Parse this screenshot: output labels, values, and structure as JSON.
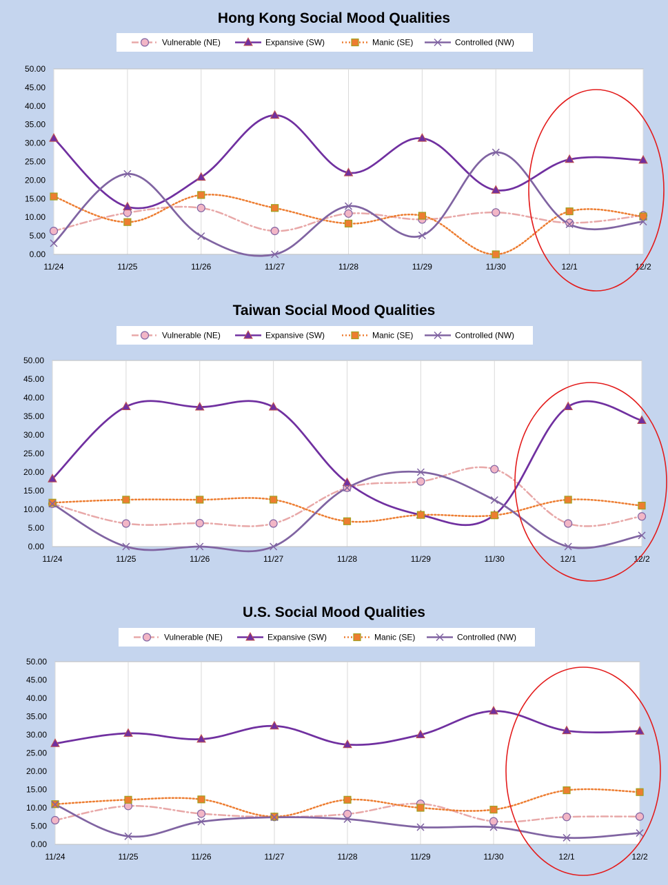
{
  "chart_data": [
    {
      "type": "line",
      "title": "Hong Kong  Social Mood Qualities",
      "categories": [
        "11/24",
        "11/25",
        "11/26",
        "11/27",
        "11/28",
        "11/29",
        "11/30",
        "12/1",
        "12/2"
      ],
      "ylim": [
        0,
        50
      ],
      "yticks": [
        "0.00",
        "5.00",
        "10.00",
        "15.00",
        "20.00",
        "25.00",
        "30.00",
        "35.00",
        "40.00",
        "45.00",
        "50.00"
      ],
      "grid": "vertical",
      "legend": "top",
      "annotation": "red ellipse around 12/1 – 12/2",
      "series": [
        {
          "name": "Vulnerable (NE)",
          "color": "#e8a8a8",
          "marker": "circle",
          "dash": "dashdot",
          "values": [
            6.3,
            11.2,
            12.5,
            6.3,
            11.0,
            9.4,
            11.3,
            8.5,
            10.5
          ]
        },
        {
          "name": "Expansive (SW)",
          "color": "#7030a0",
          "marker": "triangle",
          "dash": "solid",
          "values": [
            31.3,
            12.8,
            20.8,
            37.5,
            22.0,
            31.3,
            17.3,
            25.6,
            25.4
          ]
        },
        {
          "name": "Manic (SE)",
          "color": "#ed7d31",
          "marker": "square",
          "dash": "dot",
          "values": [
            15.6,
            8.7,
            16.0,
            12.5,
            8.3,
            10.4,
            0.0,
            11.6,
            10.2
          ]
        },
        {
          "name": "Controlled (NW)",
          "color": "#8064a2",
          "marker": "x",
          "dash": "solid",
          "values": [
            3.0,
            21.7,
            4.9,
            0.0,
            13.0,
            5.1,
            27.5,
            8.1,
            8.8
          ]
        }
      ]
    },
    {
      "type": "line",
      "title": "Taiwan  Social Mood Qualities",
      "categories": [
        "11/24",
        "11/25",
        "11/26",
        "11/27",
        "11/28",
        "11/29",
        "11/30",
        "12/1",
        "12/2"
      ],
      "ylim": [
        0,
        50
      ],
      "yticks": [
        "0.00",
        "5.00",
        "10.00",
        "15.00",
        "20.00",
        "25.00",
        "30.00",
        "35.00",
        "40.00",
        "45.00",
        "50.00"
      ],
      "grid": "vertical",
      "legend": "top",
      "annotation": "red ellipse around 12/1 – 12/2",
      "series": [
        {
          "name": "Vulnerable (NE)",
          "color": "#e8a8a8",
          "marker": "circle",
          "dash": "dashdot",
          "values": [
            11.5,
            6.2,
            6.3,
            6.2,
            15.8,
            17.5,
            20.8,
            6.2,
            8.1
          ]
        },
        {
          "name": "Expansive (SW)",
          "color": "#7030a0",
          "marker": "triangle",
          "dash": "solid",
          "values": [
            18.2,
            37.6,
            37.5,
            37.5,
            17.2,
            8.5,
            8.5,
            37.6,
            33.9
          ]
        },
        {
          "name": "Manic (SE)",
          "color": "#ed7d31",
          "marker": "square",
          "dash": "dot",
          "values": [
            11.8,
            12.6,
            12.6,
            12.6,
            6.8,
            8.5,
            8.4,
            12.6,
            11.0
          ]
        },
        {
          "name": "Controlled (NW)",
          "color": "#8064a2",
          "marker": "x",
          "dash": "solid",
          "values": [
            11.5,
            0.0,
            0.0,
            0.0,
            15.8,
            20.0,
            12.5,
            0.0,
            3.0
          ]
        }
      ]
    },
    {
      "type": "line",
      "title": "U.S.  Social Mood Qualities",
      "categories": [
        "11/24",
        "11/25",
        "11/26",
        "11/27",
        "11/28",
        "11/29",
        "11/30",
        "12/1",
        "12/2"
      ],
      "ylim": [
        0,
        50
      ],
      "yticks": [
        "0.00",
        "5.00",
        "10.00",
        "15.00",
        "20.00",
        "25.00",
        "30.00",
        "35.00",
        "40.00",
        "45.00",
        "50.00"
      ],
      "grid": "vertical",
      "legend": "top",
      "annotation": "red ellipse around 12/1 – 12/2",
      "series": [
        {
          "name": "Vulnerable (NE)",
          "color": "#e8a8a8",
          "marker": "circle",
          "dash": "dashdot",
          "values": [
            6.6,
            10.5,
            8.4,
            7.5,
            8.3,
            11.1,
            6.3,
            7.5,
            7.6
          ]
        },
        {
          "name": "Expansive (SW)",
          "color": "#7030a0",
          "marker": "triangle",
          "dash": "solid",
          "values": [
            27.6,
            30.4,
            28.8,
            32.4,
            27.3,
            30.0,
            36.5,
            31.1,
            31.0
          ]
        },
        {
          "name": "Manic (SE)",
          "color": "#ed7d31",
          "marker": "square",
          "dash": "dot",
          "values": [
            11.0,
            12.2,
            12.3,
            7.6,
            12.2,
            10.0,
            9.5,
            14.8,
            14.3
          ]
        },
        {
          "name": "Controlled (NW)",
          "color": "#8064a2",
          "marker": "x",
          "dash": "solid",
          "values": [
            10.9,
            2.2,
            6.2,
            7.4,
            6.9,
            4.7,
            4.7,
            1.8,
            3.1
          ]
        }
      ]
    }
  ]
}
